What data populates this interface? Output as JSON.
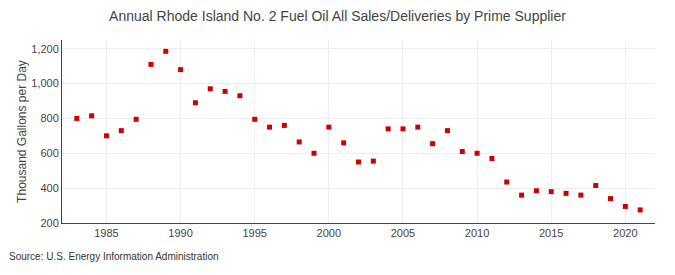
{
  "chart_data": {
    "type": "scatter",
    "title": "Annual Rhode Island No. 2 Fuel Oil All Sales/Deliveries by Prime Supplier",
    "y_label": "Thousand Gallons per Day",
    "annotations": [
      "Source: U.S. Energy Information Administration"
    ],
    "x": [
      1983,
      1984,
      1985,
      1986,
      1987,
      1988,
      1989,
      1990,
      1991,
      1992,
      1993,
      1994,
      1995,
      1996,
      1997,
      1998,
      1999,
      2000,
      2001,
      2002,
      2003,
      2004,
      2005,
      2006,
      2007,
      2008,
      2009,
      2010,
      2011,
      2012,
      2013,
      2014,
      2015,
      2016,
      2017,
      2018,
      2019,
      2020,
      2021
    ],
    "values": [
      800,
      815,
      700,
      730,
      795,
      1110,
      1185,
      1080,
      890,
      970,
      955,
      930,
      795,
      750,
      760,
      665,
      600,
      750,
      660,
      550,
      555,
      740,
      740,
      750,
      655,
      730,
      610,
      600,
      570,
      435,
      360,
      385,
      380,
      370,
      360,
      415,
      340,
      295,
      275
    ],
    "color": "#cc0000",
    "marker": "square",
    "xlim": [
      1982,
      2022
    ],
    "xticks": [
      1985,
      1990,
      1995,
      2000,
      2005,
      2010,
      2015,
      2020
    ],
    "ylim": [
      200,
      1250
    ],
    "yticks": [
      200,
      400,
      600,
      800,
      {
        "value": 1000,
        "label": "1,000"
      },
      {
        "value": 1200,
        "label": "1,200"
      }
    ],
    "grid": true
  }
}
